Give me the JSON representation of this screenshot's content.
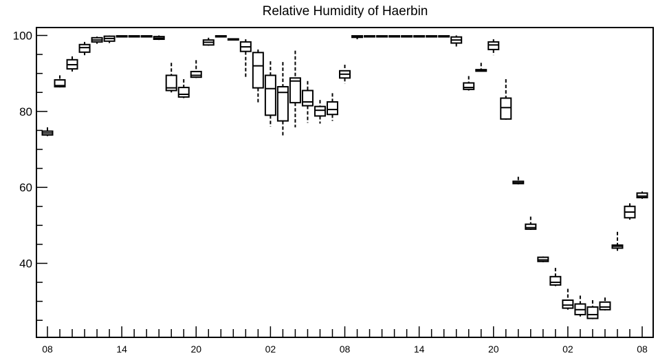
{
  "chart_data": {
    "type": "box",
    "title": "Relative Humidity of Haerbin",
    "xlabel": "",
    "ylabel": "",
    "ylim": [
      22,
      102
    ],
    "grid": false,
    "colors": {
      "box": "#000000",
      "background": "#ffffff"
    },
    "yticks": [
      40,
      60,
      80,
      100
    ],
    "xtick_labels": [
      "08",
      "14",
      "20",
      "02",
      "08",
      "14",
      "20",
      "02",
      "08"
    ],
    "xtick_hours": [
      0,
      6,
      12,
      18,
      24,
      30,
      36,
      42,
      48
    ],
    "series": [
      {
        "hour": 0,
        "whisker_low": 73.5,
        "q1": 73.8,
        "median": 74.3,
        "q3": 74.8,
        "whisker_high": 75.8
      },
      {
        "hour": 1,
        "whisker_low": 86.3,
        "q1": 86.5,
        "median": 86.8,
        "q3": 88.3,
        "whisker_high": 89.5
      },
      {
        "hour": 2,
        "whisker_low": 90.5,
        "q1": 91.2,
        "median": 92.3,
        "q3": 93.6,
        "whisker_high": 94.5
      },
      {
        "hour": 3,
        "whisker_low": 94.8,
        "q1": 95.6,
        "median": 96.8,
        "q3": 97.6,
        "whisker_high": 98.3
      },
      {
        "hour": 4,
        "whisker_low": 97.8,
        "q1": 98.3,
        "median": 98.8,
        "q3": 99.4,
        "whisker_high": 99.7
      },
      {
        "hour": 5,
        "whisker_low": 98.0,
        "q1": 98.5,
        "median": 99.2,
        "q3": 99.8,
        "whisker_high": 100.0
      },
      {
        "hour": 6,
        "whisker_low": 99.6,
        "q1": 99.7,
        "median": 99.8,
        "q3": 99.9,
        "whisker_high": 100.0
      },
      {
        "hour": 7,
        "whisker_low": 99.6,
        "q1": 99.7,
        "median": 99.8,
        "q3": 99.9,
        "whisker_high": 100.0
      },
      {
        "hour": 8,
        "whisker_low": 99.6,
        "q1": 99.7,
        "median": 99.8,
        "q3": 99.9,
        "whisker_high": 100.0
      },
      {
        "hour": 9,
        "whisker_low": 98.8,
        "q1": 99.0,
        "median": 99.3,
        "q3": 99.7,
        "whisker_high": 100.0
      },
      {
        "hour": 10,
        "whisker_low": 85.0,
        "q1": 85.5,
        "median": 86.2,
        "q3": 89.5,
        "whisker_high": 92.8
      },
      {
        "hour": 11,
        "whisker_low": 83.5,
        "q1": 83.8,
        "median": 84.5,
        "q3": 86.3,
        "whisker_high": 88.5
      },
      {
        "hour": 12,
        "whisker_low": 88.8,
        "q1": 89.0,
        "median": 89.5,
        "q3": 90.5,
        "whisker_high": 93.5
      },
      {
        "hour": 13,
        "whisker_low": 97.3,
        "q1": 97.5,
        "median": 98.2,
        "q3": 98.8,
        "whisker_high": 99.4
      },
      {
        "hour": 14,
        "whisker_low": 99.6,
        "q1": 99.7,
        "median": 99.8,
        "q3": 99.9,
        "whisker_high": 100.0
      },
      {
        "hour": 15,
        "whisker_low": 98.8,
        "q1": 98.9,
        "median": 99.0,
        "q3": 99.1,
        "whisker_high": 99.2
      },
      {
        "hour": 16,
        "whisker_low": 89.0,
        "q1": 95.8,
        "median": 97.0,
        "q3": 98.3,
        "whisker_high": 99.0
      },
      {
        "hour": 17,
        "whisker_low": 82.0,
        "q1": 86.2,
        "median": 92.0,
        "q3": 95.5,
        "whisker_high": 96.3
      },
      {
        "hour": 18,
        "whisker_low": 76.0,
        "q1": 79.0,
        "median": 86.0,
        "q3": 89.5,
        "whisker_high": 93.2
      },
      {
        "hour": 19,
        "whisker_low": 73.3,
        "q1": 77.5,
        "median": 85.0,
        "q3": 86.5,
        "whisker_high": 93.0
      },
      {
        "hour": 20,
        "whisker_low": 75.8,
        "q1": 82.3,
        "median": 88.0,
        "q3": 88.8,
        "whisker_high": 96.0
      },
      {
        "hour": 21,
        "whisker_low": 77.0,
        "q1": 81.5,
        "median": 82.5,
        "q3": 85.5,
        "whisker_high": 88.0
      },
      {
        "hour": 22,
        "whisker_low": 76.8,
        "q1": 78.8,
        "median": 80.3,
        "q3": 81.3,
        "whisker_high": 83.0
      },
      {
        "hour": 23,
        "whisker_low": 77.5,
        "q1": 79.2,
        "median": 80.5,
        "q3": 82.5,
        "whisker_high": 84.8
      },
      {
        "hour": 24,
        "whisker_low": 87.3,
        "q1": 88.8,
        "median": 89.8,
        "q3": 90.7,
        "whisker_high": 92.3
      },
      {
        "hour": 25,
        "whisker_low": 99.0,
        "q1": 99.5,
        "median": 99.8,
        "q3": 99.9,
        "whisker_high": 100.0
      },
      {
        "hour": 26,
        "whisker_low": 99.6,
        "q1": 99.7,
        "median": 99.8,
        "q3": 99.9,
        "whisker_high": 100.0
      },
      {
        "hour": 27,
        "whisker_low": 99.6,
        "q1": 99.7,
        "median": 99.8,
        "q3": 99.9,
        "whisker_high": 100.0
      },
      {
        "hour": 28,
        "whisker_low": 99.6,
        "q1": 99.7,
        "median": 99.8,
        "q3": 99.9,
        "whisker_high": 100.0
      },
      {
        "hour": 29,
        "whisker_low": 99.6,
        "q1": 99.7,
        "median": 99.8,
        "q3": 99.9,
        "whisker_high": 100.0
      },
      {
        "hour": 30,
        "whisker_low": 99.6,
        "q1": 99.7,
        "median": 99.8,
        "q3": 99.9,
        "whisker_high": 100.0
      },
      {
        "hour": 31,
        "whisker_low": 99.6,
        "q1": 99.7,
        "median": 99.8,
        "q3": 99.9,
        "whisker_high": 100.0
      },
      {
        "hour": 32,
        "whisker_low": 99.6,
        "q1": 99.7,
        "median": 99.8,
        "q3": 99.9,
        "whisker_high": 100.0
      },
      {
        "hour": 33,
        "whisker_low": 97.0,
        "q1": 98.0,
        "median": 98.8,
        "q3": 99.6,
        "whisker_high": 100.0
      },
      {
        "hour": 34,
        "whisker_low": 85.5,
        "q1": 85.8,
        "median": 86.3,
        "q3": 87.5,
        "whisker_high": 89.3
      },
      {
        "hour": 35,
        "whisker_low": 90.5,
        "q1": 90.6,
        "median": 90.8,
        "q3": 91.0,
        "whisker_high": 92.8
      },
      {
        "hour": 36,
        "whisker_low": 94.8,
        "q1": 96.3,
        "median": 97.5,
        "q3": 98.3,
        "whisker_high": 99.0
      },
      {
        "hour": 37,
        "whisker_low": 77.8,
        "q1": 78.0,
        "median": 81.0,
        "q3": 83.5,
        "whisker_high": 88.5
      },
      {
        "hour": 38,
        "whisker_low": 60.8,
        "q1": 61.0,
        "median": 61.2,
        "q3": 61.6,
        "whisker_high": 62.8
      },
      {
        "hour": 39,
        "whisker_low": 48.8,
        "q1": 49.0,
        "median": 49.4,
        "q3": 50.3,
        "whisker_high": 52.3
      },
      {
        "hour": 40,
        "whisker_low": 40.3,
        "q1": 40.5,
        "median": 40.9,
        "q3": 41.6,
        "whisker_high": 41.8
      },
      {
        "hour": 41,
        "whisker_low": 34.0,
        "q1": 34.3,
        "median": 35.0,
        "q3": 36.5,
        "whisker_high": 38.8
      },
      {
        "hour": 42,
        "whisker_low": 27.8,
        "q1": 28.2,
        "median": 29.0,
        "q3": 30.3,
        "whisker_high": 33.3
      },
      {
        "hour": 43,
        "whisker_low": 26.0,
        "q1": 26.5,
        "median": 27.8,
        "q3": 29.3,
        "whisker_high": 31.5
      },
      {
        "hour": 44,
        "whisker_low": 25.3,
        "q1": 25.5,
        "median": 26.5,
        "q3": 28.5,
        "whisker_high": 30.3
      },
      {
        "hour": 45,
        "whisker_low": 27.6,
        "q1": 27.8,
        "median": 28.5,
        "q3": 29.8,
        "whisker_high": 31.0
      },
      {
        "hour": 46,
        "whisker_low": 43.3,
        "q1": 44.0,
        "median": 44.5,
        "q3": 44.8,
        "whisker_high": 48.3
      },
      {
        "hour": 47,
        "whisker_low": 51.5,
        "q1": 52.0,
        "median": 53.5,
        "q3": 55.0,
        "whisker_high": 55.8
      },
      {
        "hour": 48,
        "whisker_low": 57.0,
        "q1": 57.3,
        "median": 57.7,
        "q3": 58.5,
        "whisker_high": 58.9
      }
    ]
  }
}
